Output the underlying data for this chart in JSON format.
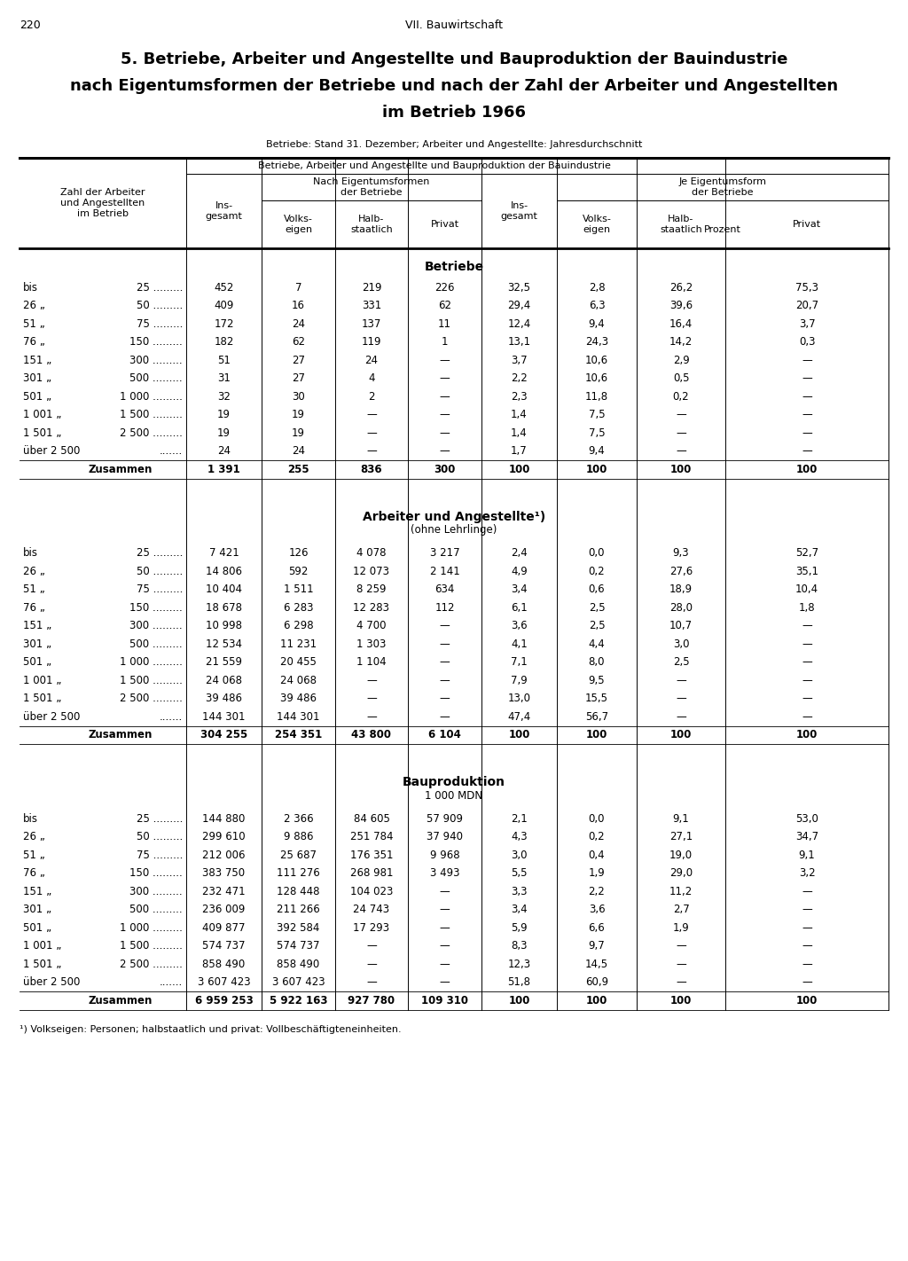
{
  "page_number": "220",
  "chapter": "VII. Bauwirtschaft",
  "title_line1": "5. Betriebe, Arbeiter und Angestellte und Bauproduktion der Bauindustrie",
  "title_line2": "nach Eigentumsformen der Betriebe und nach der Zahl der Arbeiter und Angestellten",
  "title_line3": "im Betrieb 1966",
  "subtitle": "Betriebe: Stand 31. Dezember; Arbeiter und Angestellte: Jahresdurchschnitt",
  "col_header_main": "Betriebe, Arbeiter und Angestellte und Bauproduktion der Bauindustrie",
  "prozent_label": "Prozent",
  "section1_title": "Betriebe",
  "section2_title": "Arbeiter und Angestellte¹)",
  "section2_subtitle": "(ohne Lehrlinge)",
  "section3_title": "Bauproduktion",
  "section3_subtitle": "1 000 MDN",
  "row_labels_left": [
    "bis",
    "26 „",
    "51 „",
    "76 „",
    "151 „",
    "301 „",
    "501 „",
    "1 001 „",
    "1 501 „",
    "über 2 500",
    ""
  ],
  "row_labels_right": [
    "25 .........",
    "50 .........",
    "75 .........",
    "150 .........",
    "300 .........",
    "500 .........",
    "1 000 .........",
    "1 500 .........",
    "2 500 .........",
    ".......",
    "Zusammen"
  ],
  "betriebe_data": [
    [
      "452",
      "7",
      "219",
      "226",
      "32,5",
      "2,8",
      "26,2",
      "75,3"
    ],
    [
      "409",
      "16",
      "331",
      "62",
      "29,4",
      "6,3",
      "39,6",
      "20,7"
    ],
    [
      "172",
      "24",
      "137",
      "11",
      "12,4",
      "9,4",
      "16,4",
      "3,7"
    ],
    [
      "182",
      "62",
      "119",
      "1",
      "13,1",
      "24,3",
      "14,2",
      "0,3"
    ],
    [
      "51",
      "27",
      "24",
      "—",
      "3,7",
      "10,6",
      "2,9",
      "—"
    ],
    [
      "31",
      "27",
      "4",
      "—",
      "2,2",
      "10,6",
      "0,5",
      "—"
    ],
    [
      "32",
      "30",
      "2",
      "—",
      "2,3",
      "11,8",
      "0,2",
      "—"
    ],
    [
      "19",
      "19",
      "—",
      "—",
      "1,4",
      "7,5",
      "—",
      "—"
    ],
    [
      "19",
      "19",
      "—",
      "—",
      "1,4",
      "7,5",
      "—",
      "—"
    ],
    [
      "24",
      "24",
      "—",
      "—",
      "1,7",
      "9,4",
      "—",
      "—"
    ],
    [
      "1 391",
      "255",
      "836",
      "300",
      "100",
      "100",
      "100",
      "100"
    ]
  ],
  "arbeiter_data": [
    [
      "7 421",
      "126",
      "4 078",
      "3 217",
      "2,4",
      "0,0",
      "9,3",
      "52,7"
    ],
    [
      "14 806",
      "592",
      "12 073",
      "2 141",
      "4,9",
      "0,2",
      "27,6",
      "35,1"
    ],
    [
      "10 404",
      "1 511",
      "8 259",
      "634",
      "3,4",
      "0,6",
      "18,9",
      "10,4"
    ],
    [
      "18 678",
      "6 283",
      "12 283",
      "112",
      "6,1",
      "2,5",
      "28,0",
      "1,8"
    ],
    [
      "10 998",
      "6 298",
      "4 700",
      "—",
      "3,6",
      "2,5",
      "10,7",
      "—"
    ],
    [
      "12 534",
      "11 231",
      "1 303",
      "—",
      "4,1",
      "4,4",
      "3,0",
      "—"
    ],
    [
      "21 559",
      "20 455",
      "1 104",
      "—",
      "7,1",
      "8,0",
      "2,5",
      "—"
    ],
    [
      "24 068",
      "24 068",
      "—",
      "—",
      "7,9",
      "9,5",
      "—",
      "—"
    ],
    [
      "39 486",
      "39 486",
      "—",
      "—",
      "13,0",
      "15,5",
      "—",
      "—"
    ],
    [
      "144 301",
      "144 301",
      "—",
      "—",
      "47,4",
      "56,7",
      "—",
      "—"
    ],
    [
      "304 255",
      "254 351",
      "43 800",
      "6 104",
      "100",
      "100",
      "100",
      "100"
    ]
  ],
  "bauproduktion_data": [
    [
      "144 880",
      "2 366",
      "84 605",
      "57 909",
      "2,1",
      "0,0",
      "9,1",
      "53,0"
    ],
    [
      "299 610",
      "9 886",
      "251 784",
      "37 940",
      "4,3",
      "0,2",
      "27,1",
      "34,7"
    ],
    [
      "212 006",
      "25 687",
      "176 351",
      "9 968",
      "3,0",
      "0,4",
      "19,0",
      "9,1"
    ],
    [
      "383 750",
      "111 276",
      "268 981",
      "3 493",
      "5,5",
      "1,9",
      "29,0",
      "3,2"
    ],
    [
      "232 471",
      "128 448",
      "104 023",
      "—",
      "3,3",
      "2,2",
      "11,2",
      "—"
    ],
    [
      "236 009",
      "211 266",
      "24 743",
      "—",
      "3,4",
      "3,6",
      "2,7",
      "—"
    ],
    [
      "409 877",
      "392 584",
      "17 293",
      "—",
      "5,9",
      "6,6",
      "1,9",
      "—"
    ],
    [
      "574 737",
      "574 737",
      "—",
      "—",
      "8,3",
      "9,7",
      "—",
      "—"
    ],
    [
      "858 490",
      "858 490",
      "—",
      "—",
      "12,3",
      "14,5",
      "—",
      "—"
    ],
    [
      "3 607 423",
      "3 607 423",
      "—",
      "—",
      "51,8",
      "60,9",
      "—",
      "—"
    ],
    [
      "6 959 253",
      "5 922 163",
      "927 780",
      "109 310",
      "100",
      "100",
      "100",
      "100"
    ]
  ],
  "footnote": "¹) Volkseigen: Personen; halbstaatlich und privat: Vollbeschäftigteneinheiten."
}
